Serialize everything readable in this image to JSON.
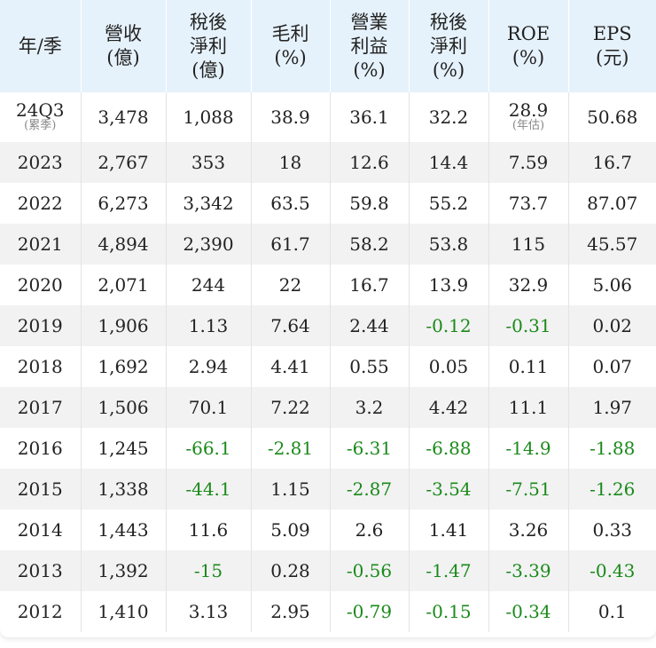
{
  "colors": {
    "header_bg": "#e6f2fb",
    "alt_row_bg": "#f2f2f2",
    "negative_text": "#1a8a1a",
    "text": "#222222",
    "note_text": "#888888"
  },
  "table": {
    "headers": [
      {
        "lines": [
          "年/季"
        ]
      },
      {
        "lines": [
          "營收",
          "(億)"
        ]
      },
      {
        "lines": [
          "稅後",
          "淨利",
          "(億)"
        ]
      },
      {
        "lines": [
          "毛利",
          "(%)"
        ]
      },
      {
        "lines": [
          "營業",
          "利益",
          "(%)"
        ]
      },
      {
        "lines": [
          "稅後",
          "淨利",
          "(%)"
        ]
      },
      {
        "lines": [
          "ROE",
          "(%)"
        ]
      },
      {
        "lines": [
          "EPS",
          "(元)"
        ]
      }
    ],
    "rows": [
      {
        "cells": [
          "24Q3",
          "3,478",
          "1,088",
          "38.9",
          "36.1",
          "32.2",
          "28.9",
          "50.68"
        ],
        "notes": {
          "0": "(累季)",
          "6": "(年估)"
        }
      },
      {
        "cells": [
          "2023",
          "2,767",
          "353",
          "18",
          "12.6",
          "14.4",
          "7.59",
          "16.7"
        ]
      },
      {
        "cells": [
          "2022",
          "6,273",
          "3,342",
          "63.5",
          "59.8",
          "55.2",
          "73.7",
          "87.07"
        ]
      },
      {
        "cells": [
          "2021",
          "4,894",
          "2,390",
          "61.7",
          "58.2",
          "53.8",
          "115",
          "45.57"
        ]
      },
      {
        "cells": [
          "2020",
          "2,071",
          "244",
          "22",
          "16.7",
          "13.9",
          "32.9",
          "5.06"
        ]
      },
      {
        "cells": [
          "2019",
          "1,906",
          "1.13",
          "7.64",
          "2.44",
          "-0.12",
          "-0.31",
          "0.02"
        ]
      },
      {
        "cells": [
          "2018",
          "1,692",
          "2.94",
          "4.41",
          "0.55",
          "0.05",
          "0.11",
          "0.07"
        ]
      },
      {
        "cells": [
          "2017",
          "1,506",
          "70.1",
          "7.22",
          "3.2",
          "4.42",
          "11.1",
          "1.97"
        ]
      },
      {
        "cells": [
          "2016",
          "1,245",
          "-66.1",
          "-2.81",
          "-6.31",
          "-6.88",
          "-14.9",
          "-1.88"
        ]
      },
      {
        "cells": [
          "2015",
          "1,338",
          "-44.1",
          "1.15",
          "-2.87",
          "-3.54",
          "-7.51",
          "-1.26"
        ]
      },
      {
        "cells": [
          "2014",
          "1,443",
          "11.6",
          "5.09",
          "2.6",
          "1.41",
          "3.26",
          "0.33"
        ]
      },
      {
        "cells": [
          "2013",
          "1,392",
          "-15",
          "0.28",
          "-0.56",
          "-1.47",
          "-3.39",
          "-0.43"
        ]
      },
      {
        "cells": [
          "2012",
          "1,410",
          "3.13",
          "2.95",
          "-0.79",
          "-0.15",
          "-0.34",
          "0.1"
        ]
      }
    ]
  }
}
